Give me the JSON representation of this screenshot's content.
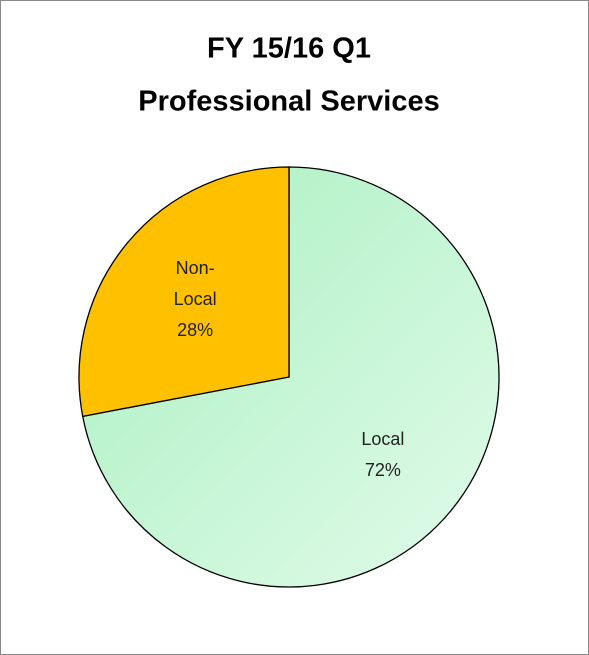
{
  "chart_data": {
    "type": "pie",
    "title": "FY 15/16 Q1",
    "subtitle": "Professional Services",
    "categories": [
      "Local",
      "Non-Local"
    ],
    "values": [
      72,
      28
    ],
    "value_labels": [
      "72%",
      "28%"
    ],
    "colors": [
      "#b8f3cb",
      "#ffc000"
    ],
    "start_angle": 0,
    "direction": "clockwise"
  }
}
